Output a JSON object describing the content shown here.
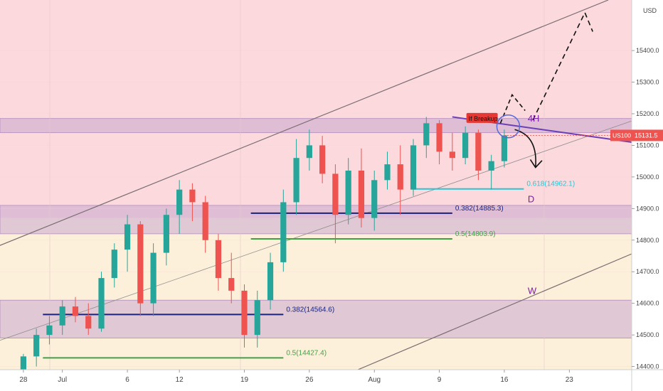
{
  "chart_data": {
    "type": "candlestick",
    "symbol": "US100",
    "currency": "USD",
    "last_price": "15131.5",
    "ylim": [
      14390,
      15560
    ],
    "y_ticks": [
      "14400.0",
      "14500.0",
      "14600.0",
      "14700.0",
      "14800.0",
      "14900.0",
      "15000.0",
      "15100.0",
      "15200.0",
      "15300.0",
      "15400.0"
    ],
    "x_ticks": [
      {
        "label": "28",
        "x": 0
      },
      {
        "label": "Jul",
        "x": 3
      },
      {
        "label": "6",
        "x": 8
      },
      {
        "label": "12",
        "x": 12
      },
      {
        "label": "19",
        "x": 17
      },
      {
        "label": "26",
        "x": 22
      },
      {
        "label": "Aug",
        "x": 27
      },
      {
        "label": "9",
        "x": 32
      },
      {
        "label": "16",
        "x": 37
      },
      {
        "label": "23",
        "x": 42
      }
    ],
    "x_range": [
      -1.8,
      46.8
    ],
    "candles": [
      [
        14380,
        14440,
        14370,
        14432
      ],
      [
        14432,
        14520,
        14400,
        14500
      ],
      [
        14500,
        14560,
        14470,
        14530
      ],
      [
        14530,
        14610,
        14500,
        14590
      ],
      [
        14590,
        14620,
        14540,
        14560
      ],
      [
        14560,
        14600,
        14500,
        14520
      ],
      [
        14520,
        14700,
        14510,
        14680
      ],
      [
        14680,
        14790,
        14650,
        14770
      ],
      [
        14770,
        14880,
        14700,
        14850
      ],
      [
        14850,
        14860,
        14560,
        14600
      ],
      [
        14600,
        14790,
        14560,
        14760
      ],
      [
        14760,
        14900,
        14720,
        14880
      ],
      [
        14880,
        14990,
        14820,
        14960
      ],
      [
        14960,
        14980,
        14860,
        14920
      ],
      [
        14920,
        14940,
        14760,
        14800
      ],
      [
        14800,
        14820,
        14640,
        14680
      ],
      [
        14680,
        14760,
        14600,
        14640
      ],
      [
        14640,
        14660,
        14460,
        14500
      ],
      [
        14500,
        14640,
        14460,
        14610
      ],
      [
        14610,
        14760,
        14580,
        14730
      ],
      [
        14730,
        14960,
        14700,
        14920
      ],
      [
        14920,
        15120,
        14880,
        15060
      ],
      [
        15060,
        15150,
        15020,
        15100
      ],
      [
        15100,
        15130,
        14980,
        15010
      ],
      [
        15010,
        15040,
        14790,
        14880
      ],
      [
        14880,
        15060,
        14850,
        15020
      ],
      [
        15020,
        15090,
        14840,
        14870
      ],
      [
        14870,
        15020,
        14830,
        14990
      ],
      [
        14990,
        15080,
        14960,
        15040
      ],
      [
        15040,
        15100,
        14880,
        14960
      ],
      [
        14960,
        15120,
        14940,
        15100
      ],
      [
        15100,
        15190,
        15060,
        15170
      ],
      [
        15170,
        15180,
        15040,
        15080
      ],
      [
        15080,
        15140,
        15020,
        15060
      ],
      [
        15060,
        15160,
        15040,
        15140
      ],
      [
        15140,
        15150,
        14990,
        15020
      ],
      [
        15020,
        15070,
        14960,
        15050
      ],
      [
        15050,
        15150,
        15030,
        15131.5
      ]
    ],
    "zones": [
      {
        "from": 15140,
        "to": 15185
      },
      {
        "from": 14820,
        "to": 14910
      },
      {
        "from": 14490,
        "to": 14610
      }
    ],
    "fib_levels": [
      {
        "label": "0.618(14962.1)",
        "value": 14962.1,
        "x_from": 30,
        "x_to": 38.5,
        "color": "#26c6da"
      },
      {
        "label": "0.382(14885.3)",
        "value": 14885.3,
        "x_from": 17.5,
        "x_to": 33,
        "color": "#1a237e"
      },
      {
        "label": "0.5(14803.9)",
        "value": 14803.9,
        "x_from": 17.5,
        "x_to": 33,
        "color": "#43a047"
      },
      {
        "label": "0.382(14564.6)",
        "value": 14564.6,
        "x_from": 1.5,
        "x_to": 20,
        "color": "#1a237e"
      },
      {
        "label": "0.5(14427.4)",
        "value": 14427.4,
        "x_from": 1.5,
        "x_to": 20,
        "color": "#43a047"
      }
    ],
    "annotations": [
      {
        "text": "If Breakup",
        "x": 36.6,
        "y": 15180
      },
      {
        "text": "4H",
        "x": 38.8,
        "y": 15175
      },
      {
        "text": "D",
        "x": 38.8,
        "y": 14920
      },
      {
        "text": "W",
        "x": 38.8,
        "y": 14630
      }
    ]
  }
}
